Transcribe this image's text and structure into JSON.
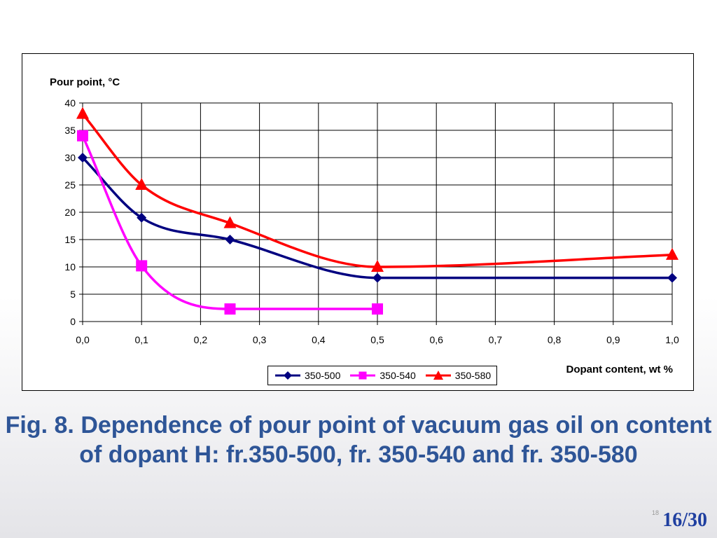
{
  "slide": {
    "caption": "Fig. 8. Dependence of pour point of vacuum gas oil on content of dopant H: fr.350-500, fr. 350-540 and fr. 350-580",
    "small_number": "18",
    "page_counter": "16/30"
  },
  "chart_data": {
    "type": "line",
    "title": "",
    "ylabel": "Pour point, °C",
    "xlabel": "Dopant content, wt %",
    "xlim": [
      0,
      1
    ],
    "ylim": [
      0,
      40
    ],
    "x_ticks": [
      "0,0",
      "0,1",
      "0,2",
      "0,3",
      "0,4",
      "0,5",
      "0,6",
      "0,7",
      "0,8",
      "0,9",
      "1,0"
    ],
    "y_ticks": [
      "0",
      "5",
      "10",
      "15",
      "20",
      "25",
      "30",
      "35",
      "40"
    ],
    "grid": true,
    "legend_position": "bottom",
    "series": [
      {
        "name": "350-500",
        "color": "#000080",
        "marker": "diamond",
        "x": [
          0,
          0.1,
          0.25,
          0.5,
          1.0
        ],
        "y": [
          30,
          19,
          15,
          8,
          8
        ]
      },
      {
        "name": "350-540",
        "color": "#ff00ff",
        "marker": "square",
        "x": [
          0,
          0.1,
          0.25,
          0.5
        ],
        "y": [
          34,
          10.2,
          2.3,
          2.3
        ]
      },
      {
        "name": "350-580",
        "color": "#ff0000",
        "marker": "triangle",
        "x": [
          0,
          0.1,
          0.25,
          0.5,
          1.0
        ],
        "y": [
          38,
          25,
          18,
          10,
          12.2
        ]
      }
    ]
  }
}
